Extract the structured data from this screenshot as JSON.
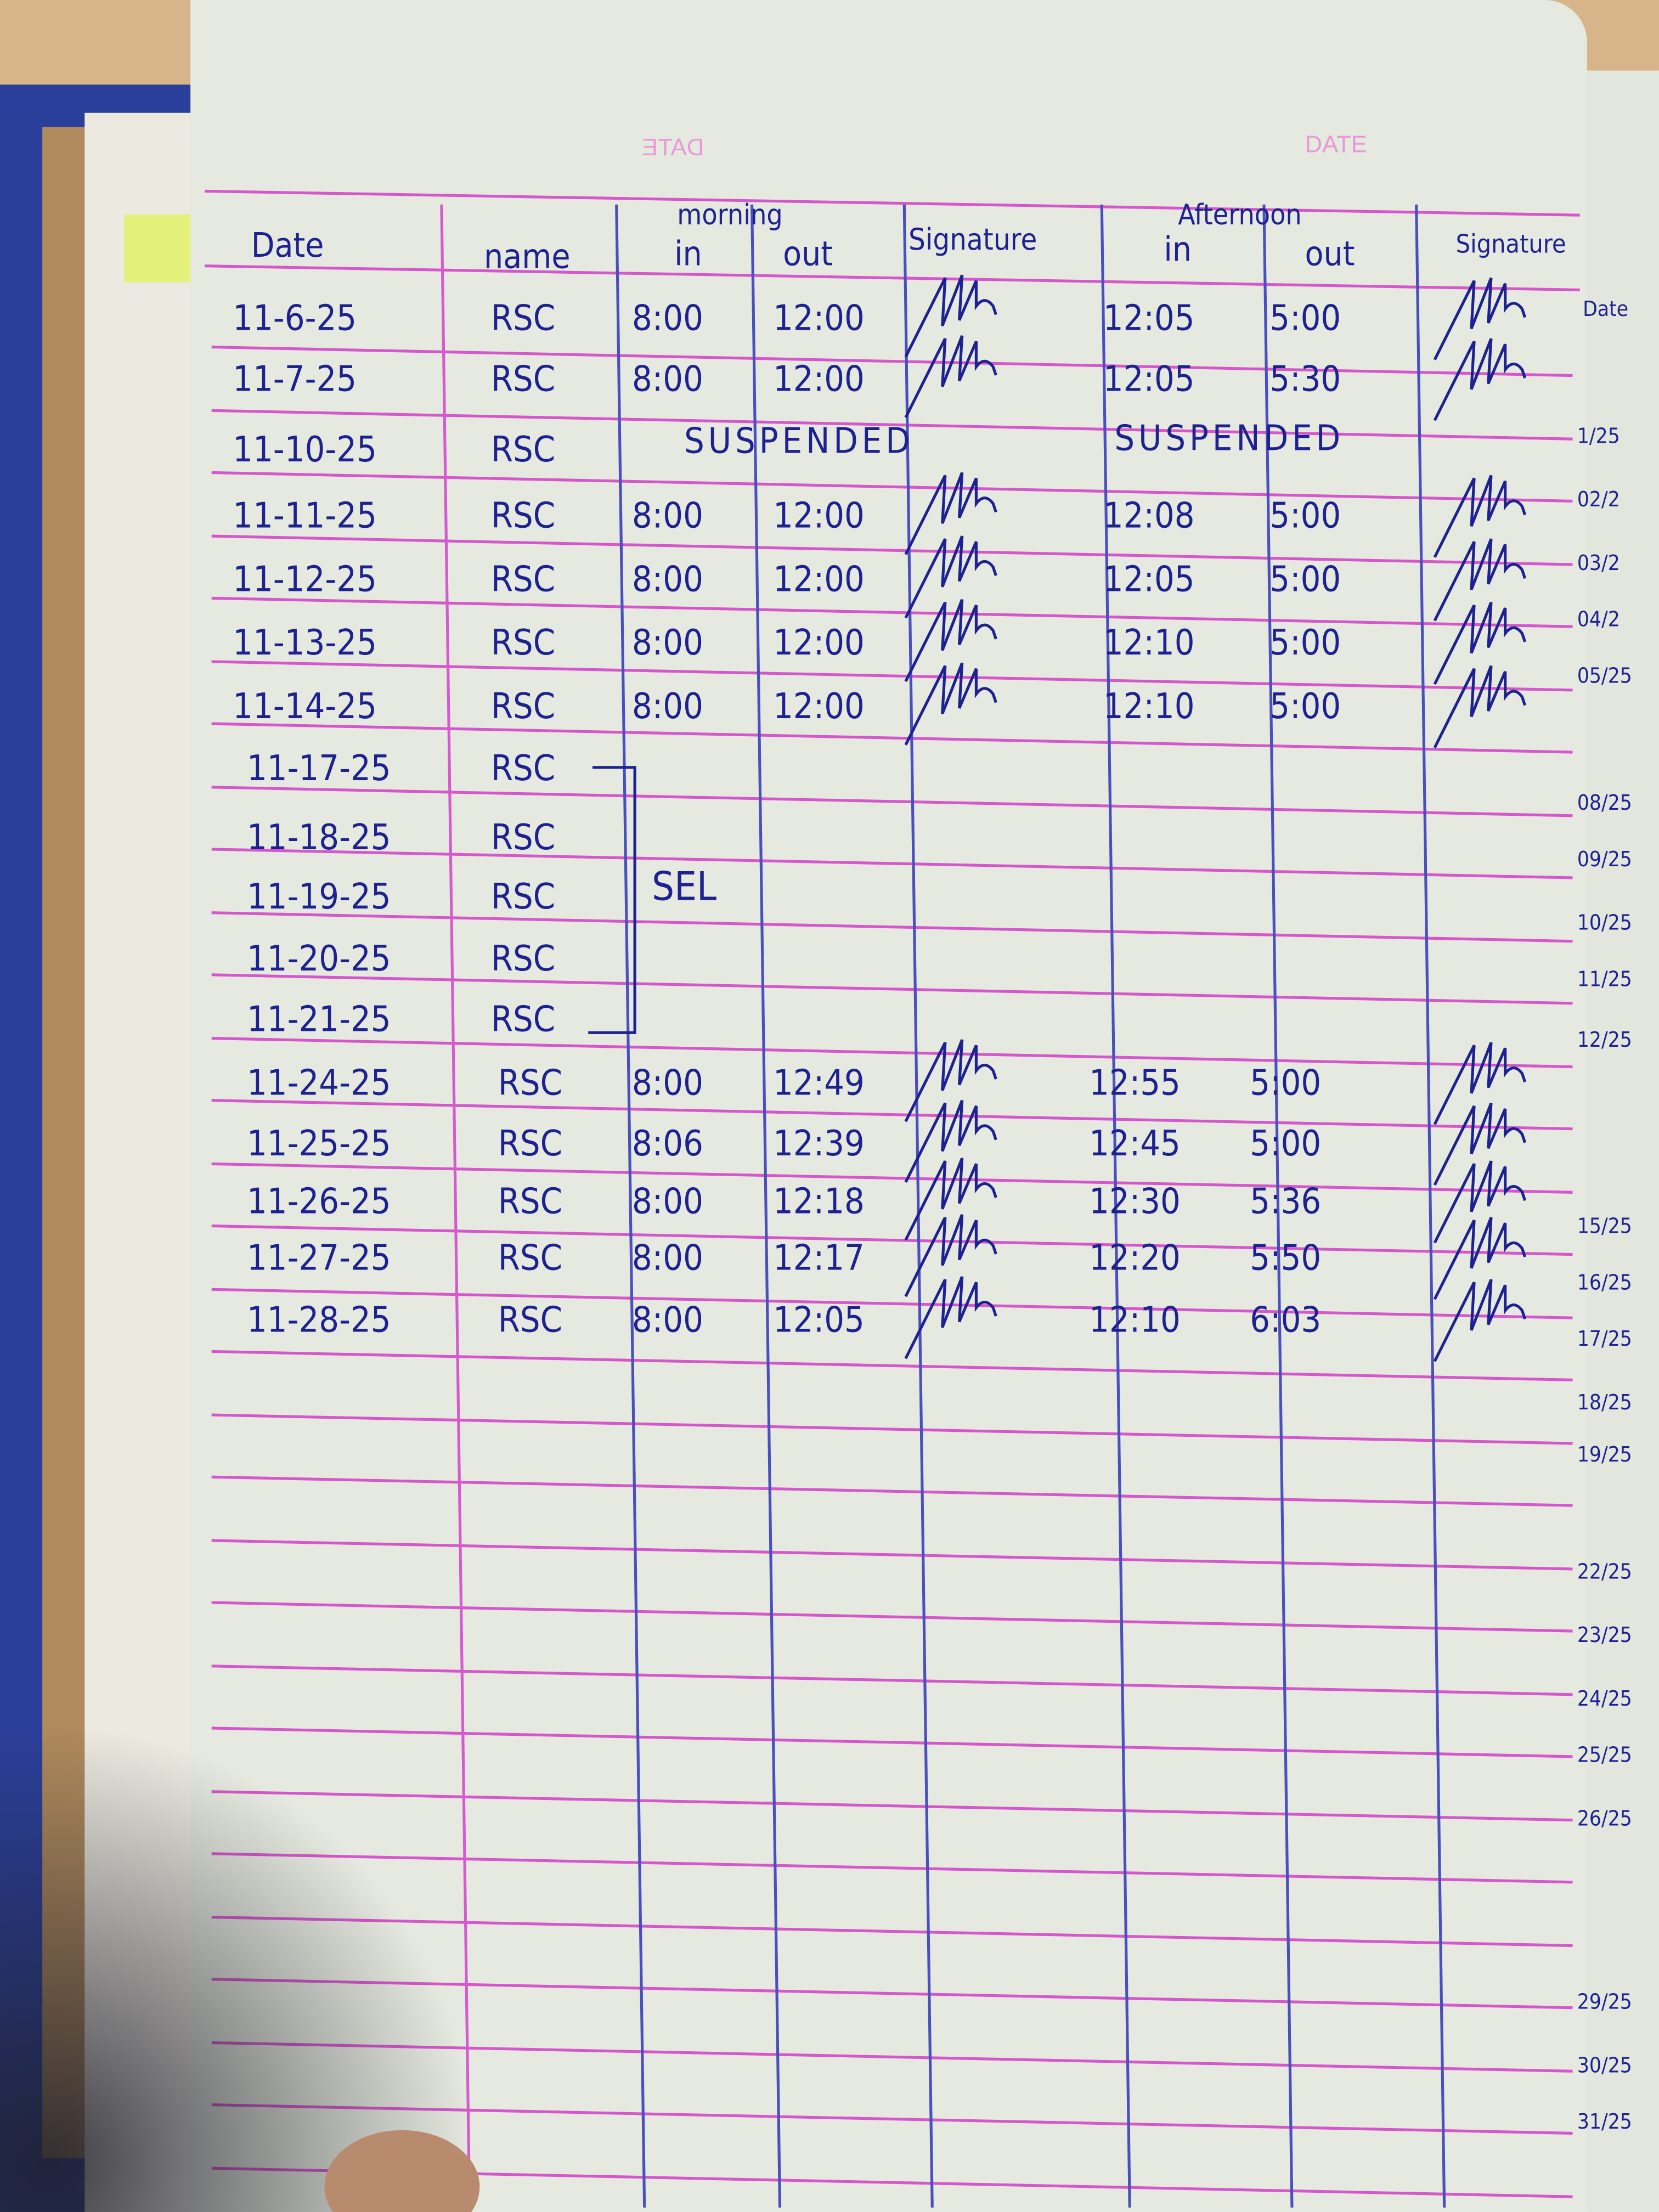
{
  "printed_header": {
    "left_mirrored": "DATE",
    "right": "DATE"
  },
  "columns": {
    "date": "Date",
    "name": "name",
    "morning": "morning",
    "morning_in": "in",
    "morning_out": "out",
    "signature": "Signature",
    "afternoon": "Afternoon",
    "afternoon_in": "in",
    "afternoon_out": "out",
    "signature2": "Signature"
  },
  "rows": [
    {
      "date": "11-6-25",
      "name": "RSC",
      "am_in": "8:00",
      "am_out": "12:00",
      "pm_in": "12:05",
      "pm_out": "5:00",
      "signed": true
    },
    {
      "date": "11-7-25",
      "name": "RSC",
      "am_in": "8:00",
      "am_out": "12:00",
      "pm_in": "12:05",
      "pm_out": "5:30",
      "signed": true
    },
    {
      "date": "11-10-25",
      "name": "RSC",
      "am_note": "SUSPENDED",
      "pm_note": "SUSPENDED",
      "signed": false
    },
    {
      "date": "11-11-25",
      "name": "RSC",
      "am_in": "8:00",
      "am_out": "12:00",
      "pm_in": "12:08",
      "pm_out": "5:00",
      "signed": true
    },
    {
      "date": "11-12-25",
      "name": "RSC",
      "am_in": "8:00",
      "am_out": "12:00",
      "pm_in": "12:05",
      "pm_out": "5:00",
      "signed": true
    },
    {
      "date": "11-13-25",
      "name": "RSC",
      "am_in": "8:00",
      "am_out": "12:00",
      "pm_in": "12:10",
      "pm_out": "5:00",
      "signed": true
    },
    {
      "date": "11-14-25",
      "name": "RSC",
      "am_in": "8:00",
      "am_out": "12:00",
      "pm_in": "12:10",
      "pm_out": "5:00",
      "signed": true
    },
    {
      "date": "11-17-25",
      "name": "RSC",
      "signed": false
    },
    {
      "date": "11-18-25",
      "name": "RSC",
      "signed": false
    },
    {
      "date": "11-19-25",
      "name": "RSC",
      "signed": false
    },
    {
      "date": "11-20-25",
      "name": "RSC",
      "signed": false
    },
    {
      "date": "11-21-25",
      "name": "RSC",
      "signed": false
    },
    {
      "date": "11-24-25",
      "name": "RSC",
      "am_in": "8:00",
      "am_out": "12:49",
      "pm_in": "12:55",
      "pm_out": "5:00",
      "signed": true
    },
    {
      "date": "11-25-25",
      "name": "RSC",
      "am_in": "8:06",
      "am_out": "12:39",
      "pm_in": "12:45",
      "pm_out": "5:00",
      "signed": true
    },
    {
      "date": "11-26-25",
      "name": "RSC",
      "am_in": "8:00",
      "am_out": "12:18",
      "pm_in": "12:30",
      "pm_out": "5:36",
      "signed": true
    },
    {
      "date": "11-27-25",
      "name": "RSC",
      "am_in": "8:00",
      "am_out": "12:17",
      "pm_in": "12:20",
      "pm_out": "5:50",
      "signed": true
    },
    {
      "date": "11-28-25",
      "name": "RSC",
      "am_in": "8:00",
      "am_out": "12:05",
      "pm_in": "12:10",
      "pm_out": "6:03",
      "signed": true
    }
  ],
  "bracket_note": "SEL",
  "next_page": {
    "header": "Date",
    "dates": [
      "1/25",
      "02/2",
      "03/2",
      "04/2",
      "05/25",
      "08/25",
      "09/25",
      "10/25",
      "11/25",
      "12/25",
      "15/25",
      "16/25",
      "17/25",
      "18/25",
      "19/25",
      "22/25",
      "23/25",
      "24/25",
      "25/25",
      "26/25",
      "29/25",
      "30/25",
      "31/25"
    ]
  },
  "colors": {
    "ink": "#1d2290",
    "ruling_pink": "#d23cc8",
    "ruling_blue": "#4a4fc0",
    "paper": "#e6e9df",
    "cover": "#2a3f9a"
  }
}
